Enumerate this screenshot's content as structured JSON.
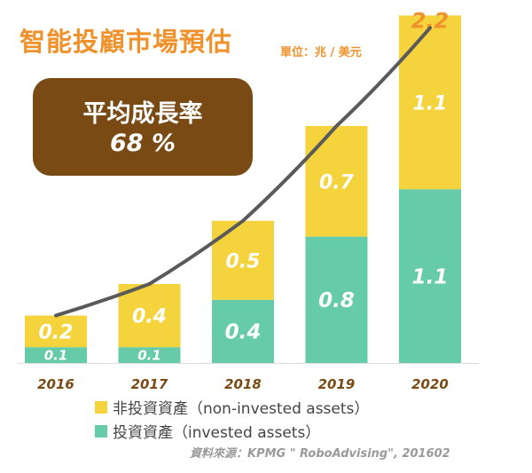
{
  "header": {
    "title": "智能投顧市場預估",
    "unit": "單位：兆 / 美元"
  },
  "cagr": {
    "label": "平均成長率",
    "value": "68 %"
  },
  "legend": {
    "non_invested": "非投資資產（non-invested assets）",
    "invested": "投資資產（invested assets）"
  },
  "source": "資料來源：KPMG \" RoboAdvising\", 201602",
  "colors": {
    "title": "#f0922b",
    "cagr_box": "#7a4a14",
    "non_invested": "#f5d33c",
    "invested": "#66cba8",
    "trend_line": "#5a5a5a",
    "year_label": "#7a4a14"
  },
  "chart_data": {
    "type": "bar",
    "stacked": true,
    "categories": [
      "2016",
      "2017",
      "2018",
      "2019",
      "2020"
    ],
    "series": [
      {
        "name": "投資資產（invested assets）",
        "values": [
          0.1,
          0.1,
          0.4,
          0.8,
          1.1
        ]
      },
      {
        "name": "非投資資產（non-invested assets）",
        "values": [
          0.2,
          0.4,
          0.5,
          0.7,
          1.1
        ]
      }
    ],
    "totals": [
      0.3,
      0.5,
      0.9,
      1.5,
      2.2
    ],
    "total_labels": [
      "",
      "",
      "",
      "",
      "2.2"
    ],
    "invested_labels": [
      "0.1",
      "0.1",
      "0.4",
      "0.8",
      "1.1"
    ],
    "non_invested_labels": [
      "0.2",
      "0.4",
      "0.5",
      "0.7",
      "1.1"
    ],
    "ylim": [
      0,
      2.2
    ],
    "trend_line": true,
    "title": "智能投顧市場預估",
    "ylabel": "兆 / 美元"
  }
}
